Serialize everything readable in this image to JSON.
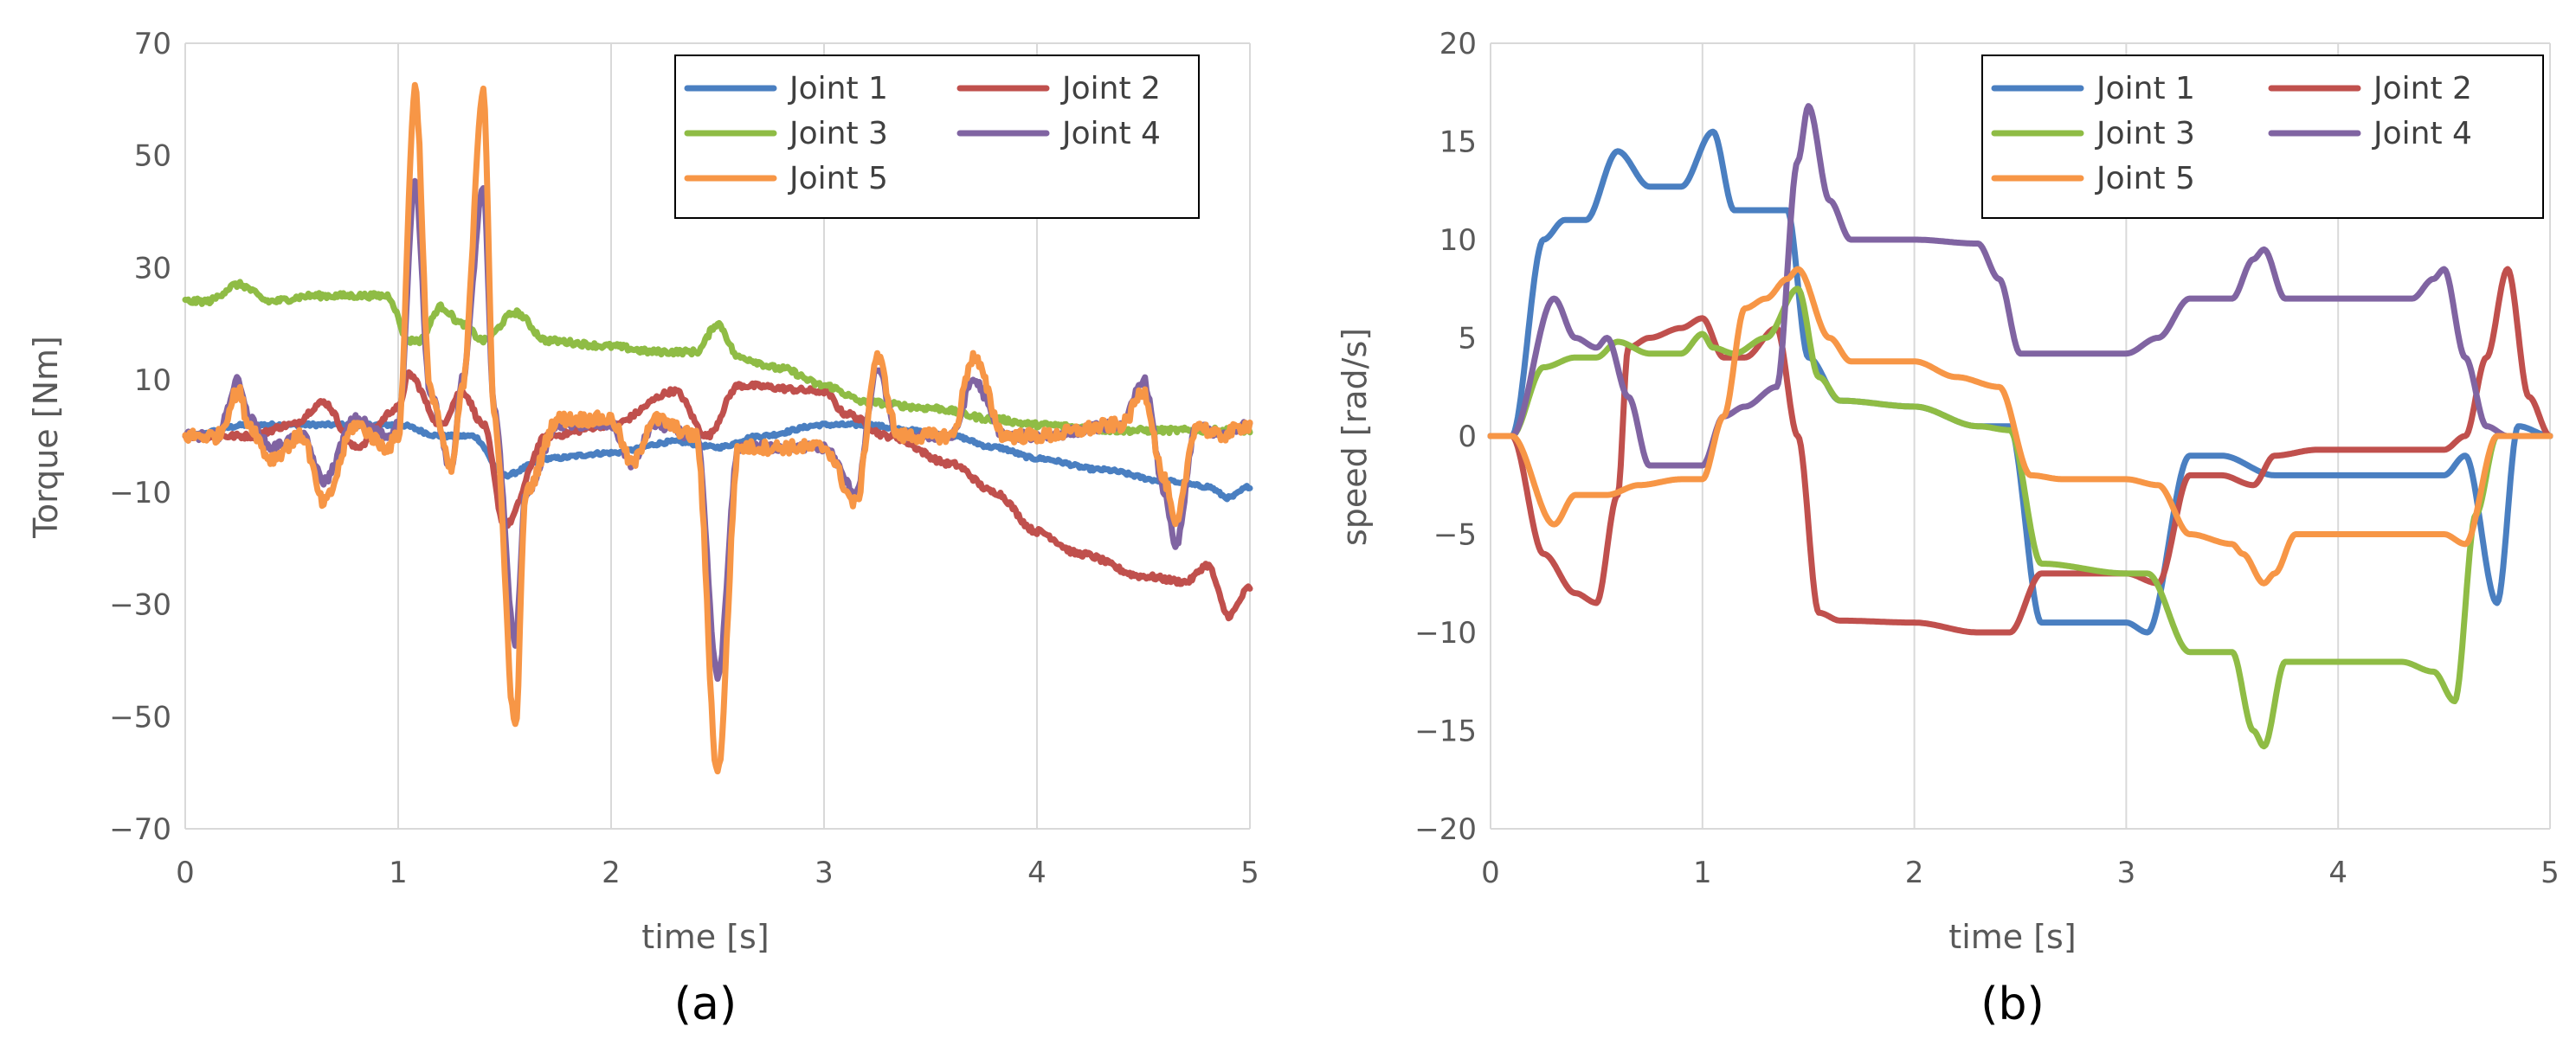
{
  "chart_data": [
    {
      "type": "line",
      "panel_label": "(a)",
      "xlabel": "time [s]",
      "ylabel": "Torque [Nm]",
      "xlim": [
        0,
        5
      ],
      "ylim": [
        -70,
        70
      ],
      "xticks": [
        0,
        1,
        2,
        3,
        4,
        5
      ],
      "yticks": [
        70,
        50,
        30,
        10,
        -10,
        -30,
        -50,
        -70
      ],
      "ytick_labels": [
        "70",
        "50",
        "30",
        "10",
        "−10",
        "−30",
        "−50",
        "−70"
      ],
      "xtick_labels": [
        "0",
        "1",
        "2",
        "3",
        "4",
        "5"
      ],
      "grid": "vertical",
      "legend": "top-right",
      "series": [
        {
          "name": "Joint 1",
          "color": "#4a7fc1",
          "noise": 0.3,
          "x": [
            0,
            0.3,
            0.6,
            0.9,
            1.0,
            1.2,
            1.35,
            1.5,
            1.7,
            2.0,
            2.3,
            2.5,
            2.7,
            3.0,
            3.2,
            3.4,
            3.6,
            3.8,
            4.0,
            4.3,
            4.6,
            4.8,
            4.9,
            5.0
          ],
          "y": [
            0,
            2,
            2,
            2,
            2,
            0,
            0,
            -7,
            -4,
            -3,
            -1,
            -2,
            0,
            2,
            2,
            1,
            0,
            -2,
            -4,
            -6,
            -8,
            -9,
            -11,
            -9
          ]
        },
        {
          "name": "Joint 2",
          "color": "#c0504d",
          "noise": 0.5,
          "x": [
            0,
            0.3,
            0.5,
            0.65,
            0.8,
            1.0,
            1.05,
            1.2,
            1.3,
            1.4,
            1.5,
            1.7,
            2.0,
            2.3,
            2.45,
            2.6,
            3.0,
            3.1,
            3.3,
            3.6,
            3.8,
            4.0,
            4.2,
            4.5,
            4.7,
            4.8,
            4.9,
            5.0
          ],
          "y": [
            0,
            0,
            2,
            6,
            -2,
            5,
            11,
            2,
            8,
            2,
            -16,
            0,
            2,
            8,
            0,
            9,
            8,
            4,
            0,
            -5,
            -10,
            -17,
            -21,
            -25,
            -26,
            -23,
            -32,
            -27
          ]
        },
        {
          "name": "Joint 3",
          "color": "#8fbc45",
          "noise": 0.5,
          "x": [
            0,
            0.1,
            0.25,
            0.4,
            0.6,
            0.8,
            0.95,
            1.05,
            1.1,
            1.2,
            1.3,
            1.4,
            1.55,
            1.7,
            2.0,
            2.2,
            2.4,
            2.5,
            2.6,
            2.8,
            3.0,
            3.2,
            3.5,
            3.8,
            4.0,
            4.4,
            4.7,
            5.0
          ],
          "y": [
            24,
            24,
            27,
            24,
            25,
            25,
            25,
            17,
            17,
            23,
            20,
            17,
            22,
            17,
            16,
            15,
            15,
            20,
            14,
            12,
            9,
            6,
            5,
            3,
            2,
            1,
            1,
            1
          ]
        },
        {
          "name": "Joint 4",
          "color": "#8064a2",
          "noise": 0.8,
          "x": [
            0,
            0.15,
            0.25,
            0.3,
            0.4,
            0.55,
            0.65,
            0.8,
            0.95,
            1.0,
            1.08,
            1.15,
            1.25,
            1.3,
            1.4,
            1.45,
            1.55,
            1.6,
            1.75,
            2.0,
            2.1,
            2.2,
            2.4,
            2.5,
            2.6,
            3.0,
            3.15,
            3.25,
            3.35,
            3.6,
            3.7,
            3.85,
            4.0,
            4.4,
            4.5,
            4.6,
            4.65,
            4.75,
            4.85,
            5.0
          ],
          "y": [
            0,
            0,
            10,
            3,
            -2,
            0,
            -8,
            3,
            0,
            2,
            45,
            8,
            -6,
            10,
            44,
            5,
            -37,
            -10,
            2,
            2,
            -5,
            2,
            0,
            -43,
            -2,
            -2,
            -10,
            12,
            0,
            0,
            10,
            0,
            0,
            2,
            10,
            -10,
            -20,
            2,
            0,
            2
          ]
        },
        {
          "name": "Joint 5",
          "color": "#f79646",
          "noise": 1.2,
          "x": [
            0,
            0.15,
            0.25,
            0.3,
            0.4,
            0.55,
            0.65,
            0.8,
            0.95,
            1.0,
            1.08,
            1.15,
            1.25,
            1.3,
            1.4,
            1.45,
            1.55,
            1.6,
            1.75,
            2.0,
            2.1,
            2.2,
            2.4,
            2.5,
            2.6,
            3.0,
            3.15,
            3.25,
            3.35,
            3.6,
            3.7,
            3.85,
            4.0,
            4.4,
            4.5,
            4.6,
            4.65,
            4.75,
            4.85,
            5.0
          ],
          "y": [
            0,
            0,
            8,
            2,
            -4,
            0,
            -12,
            2,
            -2,
            0,
            62,
            8,
            -6,
            8,
            62,
            4,
            -52,
            -10,
            3,
            3,
            -5,
            3,
            0,
            -60,
            -2,
            -2,
            -12,
            14,
            0,
            0,
            14,
            0,
            0,
            2,
            8,
            -8,
            -16,
            2,
            0,
            2
          ]
        }
      ]
    },
    {
      "type": "line",
      "panel_label": "(b)",
      "xlabel": "time [s]",
      "ylabel": "speed [rad/s]",
      "xlim": [
        0,
        5
      ],
      "ylim": [
        -20,
        20
      ],
      "xticks": [
        0,
        1,
        2,
        3,
        4,
        5
      ],
      "yticks": [
        20,
        15,
        10,
        5,
        0,
        -5,
        -10,
        -15,
        -20
      ],
      "ytick_labels": [
        "20",
        "15",
        "10",
        "5",
        "0",
        "−5",
        "−10",
        "−15",
        "−20"
      ],
      "xtick_labels": [
        "0",
        "1",
        "2",
        "3",
        "4",
        "5"
      ],
      "grid": "vertical",
      "legend": "top-right",
      "series": [
        {
          "name": "Joint 1",
          "color": "#4a7fc1",
          "noise": 0,
          "x": [
            0,
            0.1,
            0.25,
            0.35,
            0.45,
            0.6,
            0.75,
            0.9,
            1.05,
            1.15,
            1.25,
            1.4,
            1.5,
            1.65,
            2.0,
            2.3,
            2.45,
            2.6,
            3.0,
            3.1,
            3.3,
            3.45,
            3.7,
            4.0,
            4.5,
            4.6,
            4.75,
            4.85,
            5.0
          ],
          "y": [
            0,
            0,
            10,
            11,
            11,
            14.5,
            12.7,
            12.7,
            15.5,
            11.5,
            11.5,
            11.5,
            4,
            1.8,
            1.5,
            0.5,
            0.5,
            -9.5,
            -9.5,
            -10,
            -1,
            -1,
            -2,
            -2,
            -2,
            -1,
            -8.5,
            0.5,
            0
          ]
        },
        {
          "name": "Joint 2",
          "color": "#c0504d",
          "noise": 0,
          "x": [
            0,
            0.1,
            0.25,
            0.4,
            0.5,
            0.6,
            0.65,
            0.75,
            0.9,
            1.0,
            1.1,
            1.2,
            1.35,
            1.45,
            1.55,
            1.65,
            2.0,
            2.3,
            2.45,
            2.6,
            3.0,
            3.15,
            3.3,
            3.45,
            3.6,
            3.7,
            3.9,
            4.0,
            4.5,
            4.6,
            4.7,
            4.8,
            4.9,
            5.0
          ],
          "y": [
            0,
            0,
            -6,
            -8,
            -8.5,
            -3,
            4.5,
            5,
            5.5,
            6,
            4,
            4,
            5.5,
            0,
            -9,
            -9.4,
            -9.5,
            -10,
            -10,
            -7,
            -7,
            -7.5,
            -2,
            -2,
            -2.5,
            -1,
            -0.7,
            -0.7,
            -0.7,
            0,
            4,
            8.5,
            2,
            0
          ]
        },
        {
          "name": "Joint 3",
          "color": "#8fbc45",
          "noise": 0,
          "x": [
            0,
            0.1,
            0.25,
            0.4,
            0.5,
            0.6,
            0.75,
            0.9,
            1.0,
            1.05,
            1.15,
            1.3,
            1.45,
            1.55,
            1.65,
            2.0,
            2.3,
            2.45,
            2.6,
            3.0,
            3.1,
            3.3,
            3.5,
            3.6,
            3.65,
            3.75,
            3.9,
            4.3,
            4.45,
            4.55,
            4.65,
            4.75,
            5.0
          ],
          "y": [
            0,
            0,
            3.5,
            4,
            4,
            4.8,
            4.2,
            4.2,
            5.2,
            4.5,
            4.2,
            5,
            7.5,
            3,
            1.8,
            1.5,
            0.5,
            0.3,
            -6.5,
            -7,
            -7,
            -11,
            -11,
            -15,
            -15.8,
            -11.5,
            -11.5,
            -11.5,
            -12,
            -13.5,
            -4,
            0,
            0
          ]
        },
        {
          "name": "Joint 4",
          "color": "#8064a2",
          "noise": 0,
          "x": [
            0,
            0.1,
            0.3,
            0.4,
            0.5,
            0.55,
            0.65,
            0.75,
            0.9,
            1.0,
            1.1,
            1.2,
            1.35,
            1.45,
            1.5,
            1.6,
            1.7,
            2.0,
            2.3,
            2.4,
            2.5,
            3.0,
            3.15,
            3.3,
            3.5,
            3.6,
            3.65,
            3.75,
            4.0,
            4.35,
            4.45,
            4.5,
            4.6,
            4.7,
            4.8,
            5.0
          ],
          "y": [
            0,
            0,
            7,
            5,
            4.5,
            5,
            2,
            -1.5,
            -1.5,
            -1.5,
            1,
            1.5,
            2.5,
            14,
            16.8,
            12,
            10,
            10,
            9.8,
            8,
            4.2,
            4.2,
            5,
            7,
            7,
            9,
            9.5,
            7,
            7,
            7,
            8,
            8.5,
            4,
            0.5,
            0,
            0
          ]
        },
        {
          "name": "Joint 5",
          "color": "#f79646",
          "noise": 0,
          "x": [
            0,
            0.1,
            0.3,
            0.4,
            0.5,
            0.55,
            0.7,
            0.9,
            1.0,
            1.1,
            1.2,
            1.3,
            1.4,
            1.45,
            1.6,
            1.7,
            2.0,
            2.2,
            2.4,
            2.55,
            2.7,
            3.0,
            3.15,
            3.3,
            3.5,
            3.55,
            3.65,
            3.7,
            3.8,
            4.0,
            4.4,
            4.5,
            4.6,
            4.75,
            5.0
          ],
          "y": [
            0,
            0,
            -4.5,
            -3,
            -3,
            -3,
            -2.5,
            -2.2,
            -2.2,
            1,
            6.5,
            7,
            8,
            8.5,
            5,
            3.8,
            3.8,
            3,
            2.5,
            -2,
            -2.2,
            -2.2,
            -2.5,
            -5,
            -5.5,
            -6,
            -7.5,
            -7,
            -5,
            -5,
            -5,
            -5,
            -5.5,
            0,
            0
          ]
        }
      ]
    }
  ]
}
